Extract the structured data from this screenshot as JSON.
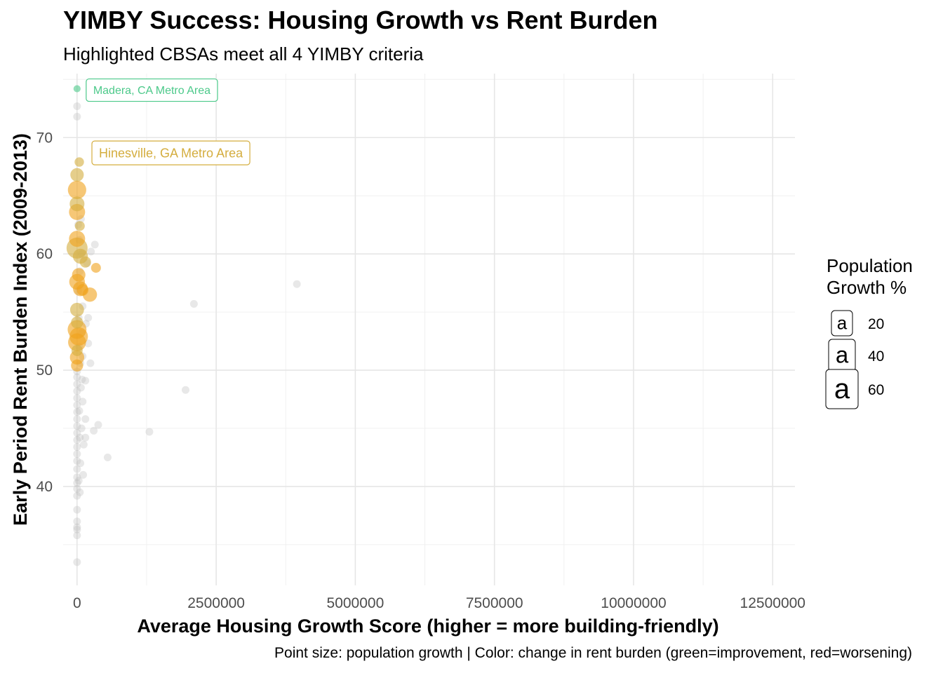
{
  "title": "YIMBY Success: Housing Growth vs Rent Burden",
  "subtitle": "Highlighted CBSAs meet all 4 YIMBY criteria",
  "caption": "Point size: population growth | Color: change in rent burden (green=improvement, red=worsening)",
  "chart_data": {
    "type": "scatter",
    "xlabel": "Average Housing Growth Score (higher = more building-friendly)",
    "ylabel": "Early Period Rent Burden Index (2009-2013)",
    "xlim": [
      -250000,
      12900000
    ],
    "ylim": [
      31.5,
      75.5
    ],
    "x_ticks": [
      0,
      2500000,
      5000000,
      7500000,
      10000000,
      12500000
    ],
    "x_tick_labels": [
      "0",
      "2500000",
      "5000000",
      "7500000",
      "10000000",
      "12500000"
    ],
    "y_ticks": [
      40,
      50,
      60,
      70
    ],
    "y_tick_labels": [
      "40",
      "50",
      "60",
      "70"
    ],
    "grid": true,
    "colors": {
      "grey": "#bdbdbd",
      "green": "#4cc98a",
      "gold": "#d4ad3e",
      "orange": "#f0a21a"
    },
    "background_points": [
      [
        0,
        33.5
      ],
      [
        0,
        35.8
      ],
      [
        0,
        36.5
      ],
      [
        0,
        37
      ],
      [
        0,
        38
      ],
      [
        0,
        39.2
      ],
      [
        0,
        39.8
      ],
      [
        0,
        40.3
      ],
      [
        0,
        40.8
      ],
      [
        0,
        41.5
      ],
      [
        0,
        42.2
      ],
      [
        0,
        42.8
      ],
      [
        0,
        43.4
      ],
      [
        0,
        44
      ],
      [
        0,
        44.6
      ],
      [
        0,
        45.2
      ],
      [
        0,
        45.8
      ],
      [
        0,
        46.4
      ],
      [
        0,
        47
      ],
      [
        0,
        47.6
      ],
      [
        0,
        48.2
      ],
      [
        0,
        48.8
      ],
      [
        0,
        49.4
      ],
      [
        0,
        49.9
      ],
      [
        30000,
        40.5
      ],
      [
        60000,
        42
      ],
      [
        50000,
        44.2
      ],
      [
        80000,
        45
      ],
      [
        40000,
        46.5
      ],
      [
        100000,
        47.3
      ],
      [
        70000,
        48.5
      ],
      [
        90000,
        49.2
      ],
      [
        120000,
        43.6
      ],
      [
        150000,
        45.8
      ],
      [
        60000,
        50.6
      ],
      [
        40000,
        52
      ],
      [
        80000,
        53.2
      ],
      [
        30000,
        54.5
      ],
      [
        100000,
        55.5
      ],
      [
        20000,
        56.8
      ],
      [
        50000,
        58.5
      ],
      [
        80000,
        60
      ],
      [
        40000,
        61.2
      ],
      [
        20000,
        62.5
      ],
      [
        70000,
        63
      ],
      [
        0,
        71.8
      ],
      [
        0,
        72.7
      ],
      [
        300000,
        44.8
      ],
      [
        380000,
        45.3
      ],
      [
        150000,
        44.2
      ],
      [
        550000,
        42.5
      ],
      [
        1300000,
        44.7
      ],
      [
        1950000,
        48.3
      ],
      [
        2100000,
        55.7
      ],
      [
        3950000,
        57.4
      ],
      [
        320000,
        60.8
      ],
      [
        240000,
        50.6
      ],
      [
        150000,
        49.1
      ],
      [
        200000,
        54.5
      ],
      [
        250000,
        60.2
      ],
      [
        180000,
        59.2
      ],
      [
        160000,
        54
      ],
      [
        200000,
        52.3
      ],
      [
        100000,
        51.2
      ],
      [
        110000,
        41
      ],
      [
        50000,
        39.5
      ],
      [
        0,
        36.3
      ]
    ],
    "highlighted_points": [
      {
        "x": 0,
        "y": 74.2,
        "pop_growth": 10,
        "color": "green"
      },
      {
        "x": 40000,
        "y": 67.9,
        "pop_growth": 20,
        "color": "gold"
      },
      {
        "x": 0,
        "y": 66.8,
        "pop_growth": 38,
        "color": "gold"
      },
      {
        "x": 0,
        "y": 65.5,
        "pop_growth": 60,
        "color": "orange"
      },
      {
        "x": 0,
        "y": 64.3,
        "pop_growth": 44,
        "color": "gold"
      },
      {
        "x": 0,
        "y": 63.6,
        "pop_growth": 50,
        "color": "orange"
      },
      {
        "x": 50000,
        "y": 62.4,
        "pop_growth": 22,
        "color": "gold"
      },
      {
        "x": 0,
        "y": 61.3,
        "pop_growth": 50,
        "color": "orange"
      },
      {
        "x": 0,
        "y": 60.5,
        "pop_growth": 72,
        "color": "gold"
      },
      {
        "x": 60000,
        "y": 59.8,
        "pop_growth": 45,
        "color": "gold"
      },
      {
        "x": 150000,
        "y": 59.3,
        "pop_growth": 28,
        "color": "gold"
      },
      {
        "x": 340000,
        "y": 58.8,
        "pop_growth": 22,
        "color": "orange"
      },
      {
        "x": 30000,
        "y": 58.2,
        "pop_growth": 38,
        "color": "orange"
      },
      {
        "x": 0,
        "y": 57.6,
        "pop_growth": 48,
        "color": "orange"
      },
      {
        "x": 60000,
        "y": 57.0,
        "pop_growth": 44,
        "color": "orange"
      },
      {
        "x": 100000,
        "y": 56.9,
        "pop_growth": 30,
        "color": "orange"
      },
      {
        "x": 230000,
        "y": 56.5,
        "pop_growth": 42,
        "color": "orange"
      },
      {
        "x": 0,
        "y": 55.2,
        "pop_growth": 40,
        "color": "gold"
      },
      {
        "x": 0,
        "y": 54.1,
        "pop_growth": 32,
        "color": "gold"
      },
      {
        "x": 0,
        "y": 53.5,
        "pop_growth": 62,
        "color": "orange"
      },
      {
        "x": 30000,
        "y": 52.9,
        "pop_growth": 60,
        "color": "orange"
      },
      {
        "x": 0,
        "y": 52.4,
        "pop_growth": 58,
        "color": "orange"
      },
      {
        "x": 0,
        "y": 51.7,
        "pop_growth": 28,
        "color": "gold"
      },
      {
        "x": 0,
        "y": 51.1,
        "pop_growth": 42,
        "color": "orange"
      },
      {
        "x": 0,
        "y": 50.4,
        "pop_growth": 32,
        "color": "orange"
      }
    ],
    "annotations": [
      {
        "text": "Madera, CA Metro Area",
        "x": 0,
        "y": 74.2,
        "color": "green"
      },
      {
        "text": "Hinesville, GA Metro Area",
        "x": 40000,
        "y": 67.9,
        "color": "gold"
      }
    ],
    "legend": {
      "title_line1": "Population",
      "title_line2": "Growth %",
      "key_glyph": "a",
      "entries": [
        "20",
        "40",
        "60"
      ],
      "placement": "right"
    }
  }
}
